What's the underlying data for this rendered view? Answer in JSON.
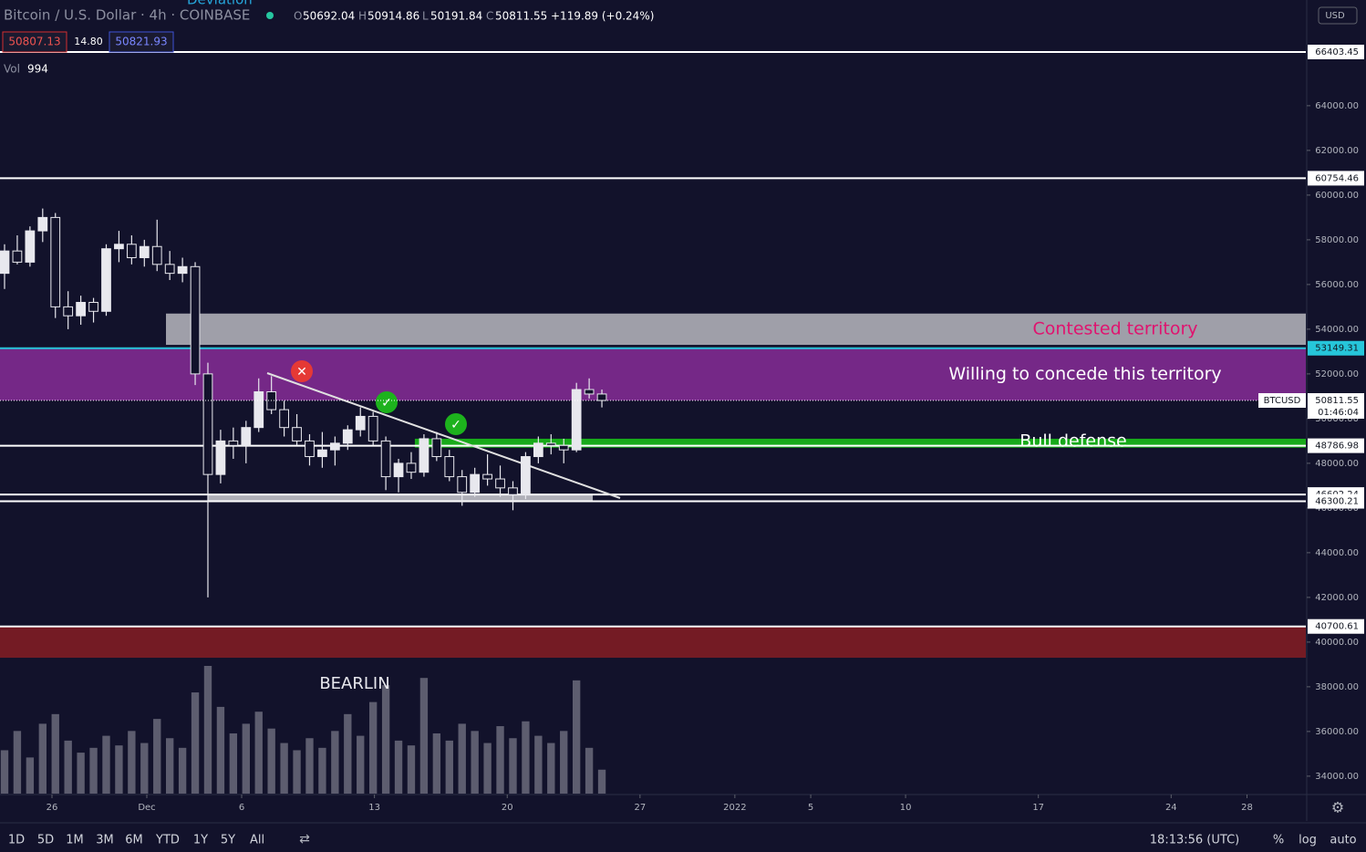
{
  "chart_data": {
    "type": "candlestick",
    "title": "Bitcoin / U.S. Dollar · 4h · COINBASE",
    "study_title": "Deviation",
    "header": {
      "o": "O",
      "open": 50692.04,
      "h": "H",
      "high": 50914.86,
      "l": "L",
      "low": 50191.84,
      "c": "C",
      "close": 50811.55,
      "change": "+119.89 (+0.24%)"
    },
    "bid": 50807.13,
    "spread": "14.80",
    "ask": 50821.93,
    "volume_label": "Vol",
    "volume_last": 994,
    "currency": "USD",
    "symbol": "BTCUSD",
    "last_price": 50811.55,
    "countdown": "01:46:04",
    "x": [
      23.5,
      24.17,
      24.84,
      25.51,
      26.18,
      26.85,
      27.52,
      28.19,
      28.86,
      29.53,
      30.2,
      30.87,
      31.54,
      32.21,
      32.88,
      33.55,
      34.22,
      34.89,
      35.56,
      36.23,
      36.9,
      37.57,
      38.24,
      38.91,
      39.58,
      40.25,
      40.92,
      41.59,
      42.26,
      42.93,
      43.6,
      44.27,
      44.94,
      45.61,
      46.28,
      46.95,
      47.62,
      48.29,
      48.96,
      49.63,
      50.3,
      50.97,
      51.64,
      52.31,
      52.98,
      53.65,
      54.32,
      54.99
    ],
    "open": [
      56500,
      57500,
      57000,
      58400,
      59000,
      55000,
      54600,
      55200,
      54800,
      57600,
      57800,
      57200,
      57700,
      56900,
      56500,
      56800,
      52000,
      47500,
      49000,
      48800,
      49600,
      51200,
      50400,
      49600,
      49000,
      48300,
      48600,
      48900,
      49500,
      50100,
      49000,
      47400,
      48000,
      47600,
      49100,
      48300,
      47400,
      46700,
      47500,
      47300,
      46900,
      46600,
      48300,
      48900,
      48800,
      48600,
      51300,
      51100
    ],
    "high": [
      57800,
      58200,
      58600,
      59400,
      59200,
      55700,
      55500,
      55400,
      57800,
      58400,
      58200,
      58000,
      58900,
      57500,
      57200,
      57000,
      52500,
      49500,
      49600,
      49900,
      51800,
      51900,
      50800,
      50200,
      49300,
      49400,
      49200,
      49700,
      50500,
      50300,
      49200,
      48200,
      48500,
      49300,
      49400,
      48600,
      47700,
      47800,
      48400,
      47900,
      47200,
      48500,
      49200,
      49300,
      49100,
      51600,
      51800,
      51300
    ],
    "low": [
      55800,
      56900,
      56800,
      57900,
      54500,
      54000,
      54200,
      54300,
      54600,
      57000,
      56900,
      56800,
      56600,
      56200,
      56100,
      51500,
      42000,
      47100,
      48200,
      48000,
      49400,
      50200,
      49200,
      48800,
      47900,
      47800,
      47900,
      48600,
      49200,
      48800,
      46800,
      46700,
      47300,
      47400,
      48100,
      47200,
      46100,
      46500,
      47000,
      46500,
      45900,
      46400,
      48000,
      48400,
      48000,
      48500,
      50900,
      50500
    ],
    "close": [
      57500,
      57000,
      58400,
      59000,
      55000,
      54600,
      55200,
      54800,
      57600,
      57800,
      57200,
      57700,
      56900,
      56500,
      56800,
      52000,
      47500,
      49000,
      48800,
      49600,
      51200,
      50400,
      49600,
      49000,
      48300,
      48600,
      48900,
      49500,
      50100,
      49000,
      47400,
      48000,
      47600,
      49100,
      48300,
      47400,
      46700,
      47500,
      47300,
      46900,
      46600,
      48300,
      48900,
      48800,
      48600,
      51300,
      51100,
      50811.55
    ],
    "volume": [
      1800,
      2600,
      1500,
      2900,
      3300,
      2200,
      1700,
      1900,
      2400,
      2000,
      2600,
      2100,
      3100,
      2300,
      1900,
      4200,
      5300,
      3600,
      2500,
      2900,
      3400,
      2700,
      2100,
      1800,
      2300,
      1900,
      2600,
      3300,
      2400,
      3800,
      4500,
      2200,
      2000,
      4800,
      2500,
      2200,
      2900,
      2600,
      2100,
      2800,
      2300,
      3000,
      2400,
      2100,
      2600,
      4700,
      1900,
      994
    ],
    "color": "#e8e8ee",
    "xlim": [
      23.26,
      92.1
    ],
    "xticks": [
      {
        "value": 26,
        "label": "26"
      },
      {
        "value": 31,
        "label": "Dec"
      },
      {
        "value": 36,
        "label": "6"
      },
      {
        "value": 43,
        "label": "13"
      },
      {
        "value": 50,
        "label": "20"
      },
      {
        "value": 57,
        "label": "27"
      },
      {
        "value": 62,
        "label": "2022"
      },
      {
        "value": 66,
        "label": "5"
      },
      {
        "value": 71,
        "label": "10"
      },
      {
        "value": 78,
        "label": "17"
      },
      {
        "value": 85,
        "label": "24"
      },
      {
        "value": 89,
        "label": "28"
      }
    ],
    "ylim": [
      33220,
      68730
    ],
    "yticks": [
      {
        "value": 34000,
        "label": "34000.00"
      },
      {
        "value": 36000,
        "label": "36000.00"
      },
      {
        "value": 38000,
        "label": "38000.00"
      },
      {
        "value": 40000,
        "label": "40000.00"
      },
      {
        "value": 42000,
        "label": "42000.00"
      },
      {
        "value": 44000,
        "label": "44000.00"
      },
      {
        "value": 46000,
        "label": "46000.00"
      },
      {
        "value": 48000,
        "label": "48000.00"
      },
      {
        "value": 50000,
        "label": "50000.00"
      },
      {
        "value": 52000,
        "label": "52000.00"
      },
      {
        "value": 54000,
        "label": "54000.00"
      },
      {
        "value": 56000,
        "label": "56000.00"
      },
      {
        "value": 58000,
        "label": "58000.00"
      },
      {
        "value": 60000,
        "label": "60000.00"
      },
      {
        "value": 62000,
        "label": "62000.00"
      },
      {
        "value": 64000,
        "label": "64000.00"
      }
    ],
    "levels": [
      {
        "value": 66403.45,
        "color": "#ffffff"
      },
      {
        "value": 60754.46,
        "color": "#ffffff"
      },
      {
        "value": 53149.31,
        "color": "#26c6da"
      },
      {
        "value": 48786.98,
        "color": "#ffffff"
      },
      {
        "value": 46602.24,
        "color": "#ffffff"
      },
      {
        "value": 46300.21,
        "color": "#ffffff"
      },
      {
        "value": 40700.61,
        "color": "#ffffff"
      }
    ],
    "zones": [
      {
        "from": 53300,
        "to": 54700,
        "start": 32.01,
        "color": "#b8b8c0",
        "label": "Contested territory",
        "label_color": "#e0136f"
      },
      {
        "from": 50811.55,
        "to": 53149.31,
        "start": 23.26,
        "color": "#7b2a8c",
        "label": "Willing to concede this territory",
        "label_color": "#ffffff"
      },
      {
        "from": 48700,
        "to": 49100,
        "start": 45.13,
        "color": "#19b319",
        "label": "Bull defense",
        "label_color": "#ffffff"
      },
      {
        "from": 46300.21,
        "to": 46602.24,
        "start": 34.22,
        "end": 54.51,
        "color": "#b8b8c0"
      },
      {
        "from": 39300,
        "to": 40700.61,
        "start": 23.26,
        "color": "#7a1c24"
      }
    ],
    "note": "BEARLIN",
    "ranges": [
      "1D",
      "5D",
      "1M",
      "3M",
      "6M",
      "YTD",
      "1Y",
      "5Y",
      "All"
    ],
    "clock": "18:13:56 (UTC)",
    "toggles": [
      "%",
      "log",
      "auto"
    ]
  }
}
